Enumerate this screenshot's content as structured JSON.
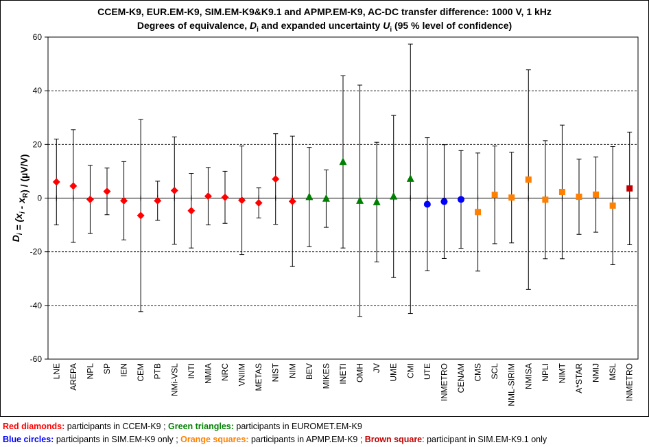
{
  "chart_data": {
    "type": "scatter",
    "title": "CCEM-K9, EUR.EM-K9, SIM.EM-K9&K9.1 and APMP.EM-K9, AC-DC transfer difference: 1000 V, 1 kHz",
    "subtitle_parts": [
      "Degrees of equivalence, ",
      "D",
      "i",
      " and expanded uncertainty ",
      "U",
      "i",
      " (95 % level of confidence)"
    ],
    "ylabel_parts": [
      "D",
      "i",
      " = (x",
      "i",
      " - x",
      "R",
      ") / (µV/V)"
    ],
    "ylim": [
      -60,
      60
    ],
    "yticks": [
      "60",
      "40",
      "20",
      "0",
      "-20",
      "-40",
      "-60"
    ],
    "grid": "horizontal dashed at ±20, ±40",
    "colors": {
      "red": "#ff0000",
      "green": "#008000",
      "blue": "#0000ff",
      "orange": "#ff8000",
      "brown": "#c00000"
    },
    "categories": [
      "LNE",
      "AREPA",
      "NPL",
      "SP",
      "IEN",
      "CEM",
      "PTB",
      "NMi-VSL",
      "INTI",
      "NMIA",
      "NRC",
      "VNIIM",
      "METAS",
      "NIST",
      "NIM",
      "BEV",
      "MIKES",
      "INETI",
      "OMH",
      "JV",
      "UME",
      "CMI",
      "UTE",
      "INMETRO",
      "CENAM",
      "CMS",
      "SCL",
      "NML-SIRIM",
      "NMISA",
      "NPLI",
      "NIMT",
      "A*STAR",
      "NMIJ",
      "MSL",
      "INMETRO"
    ],
    "series": [
      {
        "name": "Red diamonds",
        "marker": "diamond",
        "color": "#ff0000",
        "points": [
          {
            "x": "LNE",
            "y": 6,
            "U": 16
          },
          {
            "x": "AREPA",
            "y": 4.5,
            "U": 21
          },
          {
            "x": "NPL",
            "y": -0.5,
            "U": 12.7
          },
          {
            "x": "SP",
            "y": 2.5,
            "U": 8.7
          },
          {
            "x": "IEN",
            "y": -1,
            "U": 14.6
          },
          {
            "x": "CEM",
            "y": -6.5,
            "U": 35.8
          },
          {
            "x": "PTB",
            "y": -1,
            "U": 7.3
          },
          {
            "x": "NMi-VSL",
            "y": 2.8,
            "U": 20
          },
          {
            "x": "INTI",
            "y": -4.7,
            "U": 13.9
          },
          {
            "x": "NMIA",
            "y": 0.7,
            "U": 10.7
          },
          {
            "x": "NRC",
            "y": 0.3,
            "U": 9.7
          },
          {
            "x": "VNIIM",
            "y": -0.8,
            "U": 20.2
          },
          {
            "x": "METAS",
            "y": -1.8,
            "U": 5.6
          },
          {
            "x": "NIST",
            "y": 7.1,
            "U": 16.9
          },
          {
            "x": "NIM",
            "y": -1.2,
            "U": 24.3
          }
        ]
      },
      {
        "name": "Green triangles",
        "marker": "triangle",
        "color": "#008000",
        "points": [
          {
            "x": "BEV",
            "y": 0.4,
            "U": 18.5
          },
          {
            "x": "MIKES",
            "y": -0.2,
            "U": 10.7
          },
          {
            "x": "INETI",
            "y": 13.5,
            "U": 32.1
          },
          {
            "x": "OMH",
            "y": -1,
            "U": 43.1
          },
          {
            "x": "JV",
            "y": -1.5,
            "U": 22.3
          },
          {
            "x": "UME",
            "y": 0.6,
            "U": 30.2
          },
          {
            "x": "CMI",
            "y": 7.2,
            "U": 50.2
          }
        ]
      },
      {
        "name": "Blue circles",
        "marker": "circle",
        "color": "#0000ff",
        "points": [
          {
            "x": "UTE",
            "y": -2.3,
            "U": 24.8
          },
          {
            "x": "INMETRO",
            "y": -1.3,
            "U": 21.2
          },
          {
            "x": "CENAM",
            "y": -0.5,
            "U": 18.2
          }
        ]
      },
      {
        "name": "Orange squares",
        "marker": "square",
        "color": "#ff8000",
        "points": [
          {
            "x": "CMS",
            "y": -5.2,
            "U": 22
          },
          {
            "x": "SCL",
            "y": 1.2,
            "U": 18.2
          },
          {
            "x": "NML-SIRIM",
            "y": 0.2,
            "U": 16.9
          },
          {
            "x": "NMISA",
            "y": 6.9,
            "U": 40.9
          },
          {
            "x": "NPLI",
            "y": -0.6,
            "U": 22
          },
          {
            "x": "NIMT",
            "y": 2.3,
            "U": 24.9
          },
          {
            "x": "A*STAR",
            "y": 0.5,
            "U": 14
          },
          {
            "x": "NMIJ",
            "y": 1.3,
            "U": 14
          },
          {
            "x": "MSL",
            "y": -2.8,
            "U": 22
          }
        ]
      },
      {
        "name": "Brown square",
        "marker": "square",
        "color": "#c00000",
        "points": [
          {
            "x": "INMETRO",
            "y": 3.6,
            "U": 21
          }
        ]
      }
    ]
  },
  "legend": {
    "line1": [
      {
        "style": "red",
        "text": "Red diamonds:"
      },
      {
        "style": "plain",
        "text": " participants in CCEM-K9  ; "
      },
      {
        "style": "green",
        "text": "Green triangles:"
      },
      {
        "style": "plain",
        "text": " participants in EUROMET.EM-K9"
      }
    ],
    "line2": [
      {
        "style": "blue",
        "text": "Blue circles:"
      },
      {
        "style": "plain",
        "text": " participants in SIM.EM-K9 only ; "
      },
      {
        "style": "orange",
        "text": "Orange squares:"
      },
      {
        "style": "plain",
        "text": " participants in APMP.EM-K9 ; "
      },
      {
        "style": "brown",
        "text": "Brown square"
      },
      {
        "style": "plain",
        "text": ": participant in SIM.EM-K9.1 only"
      }
    ]
  }
}
